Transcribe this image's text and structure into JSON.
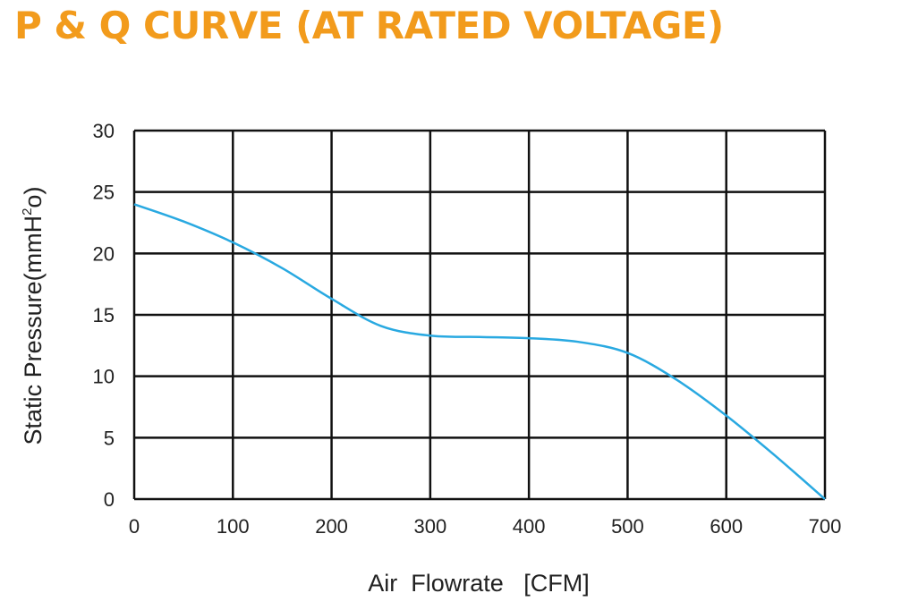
{
  "chart_data": {
    "type": "line",
    "title": "P & Q CURVE (AT RATED VOLTAGE)",
    "xlabel": "Air  Flowrate   [CFM]",
    "ylabel": {
      "prefix": "Static Pressure(mmH",
      "sup": "2",
      "suffix": "o)"
    },
    "xlim": [
      0,
      700
    ],
    "ylim": [
      0,
      30
    ],
    "xticks": [
      0,
      100,
      200,
      300,
      400,
      500,
      600,
      700
    ],
    "yticks": [
      0,
      5,
      10,
      15,
      20,
      25,
      30
    ],
    "grid": true,
    "series": [
      {
        "color": "#29a9e1",
        "x": [
          0,
          50,
          100,
          150,
          200,
          250,
          300,
          350,
          400,
          450,
          500,
          550,
          600,
          650,
          700
        ],
        "y": [
          24,
          22.6,
          20.9,
          18.8,
          16.3,
          14.1,
          13.3,
          13.2,
          13.1,
          12.8,
          11.9,
          9.7,
          6.8,
          3.5,
          0
        ]
      }
    ]
  }
}
